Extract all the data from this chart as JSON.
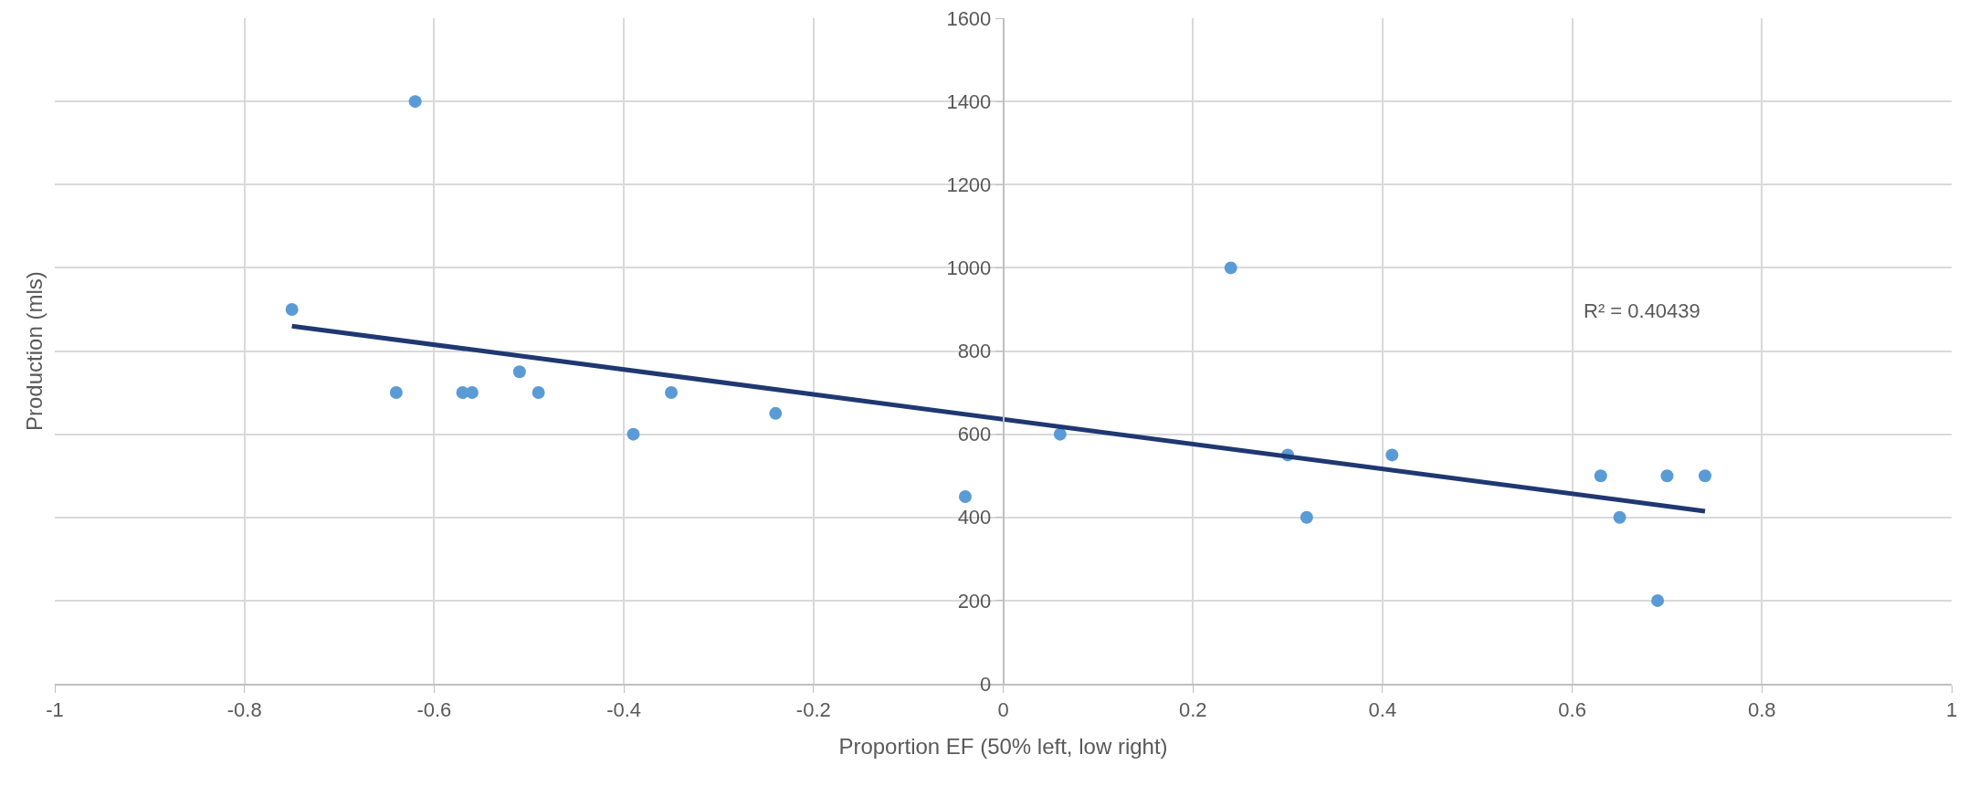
{
  "chart_data": {
    "type": "scatter",
    "xlabel": "Proportion EF (50% left, low right)",
    "ylabel": "Production (mls)",
    "annotations": [
      "R² = 0.40439"
    ],
    "xlim": [
      -1,
      1
    ],
    "xticks": [
      -1,
      -0.8,
      -0.6,
      -0.4,
      -0.2,
      0,
      0.2,
      0.4,
      0.6,
      0.8,
      1
    ],
    "ylim": [
      0,
      1600
    ],
    "yticks": [
      0,
      200,
      400,
      600,
      800,
      1000,
      1200,
      1400,
      1600
    ],
    "grid": true,
    "marker": "circle",
    "series": [
      {
        "color": "#5b9bd5",
        "x": [
          -0.75,
          -0.62,
          -0.64,
          -0.57,
          -0.56,
          -0.51,
          -0.49,
          -0.39,
          -0.35,
          -0.24,
          -0.04,
          0.06,
          0.24,
          0.3,
          0.32,
          0.41,
          0.63,
          0.65,
          0.69,
          0.7,
          0.74
        ],
        "values": [
          900,
          1400,
          700,
          700,
          700,
          750,
          700,
          600,
          700,
          650,
          450,
          600,
          1000,
          550,
          400,
          550,
          500,
          400,
          200,
          500,
          500
        ]
      },
      {
        "type": "line",
        "marker": "none",
        "color": "#1f3872",
        "x": [
          -0.75,
          0.74
        ],
        "values": [
          860,
          415
        ]
      }
    ]
  }
}
